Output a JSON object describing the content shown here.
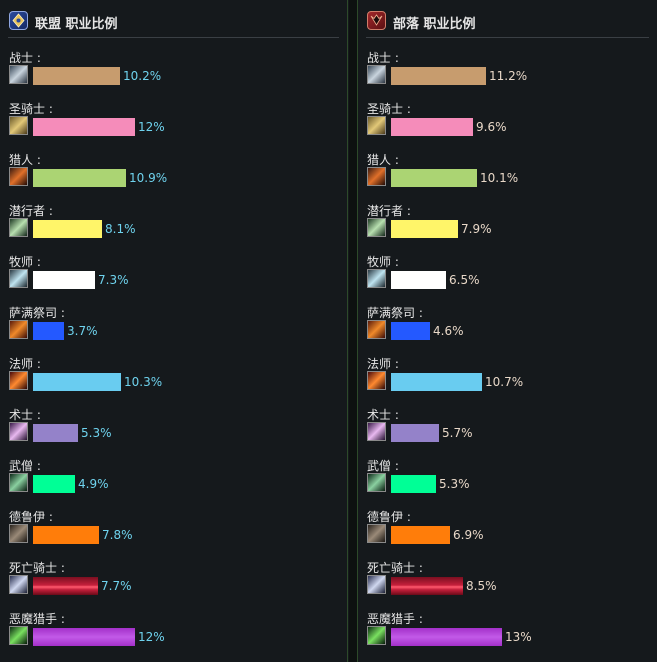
{
  "alliance": {
    "title": "联盟 职业比例",
    "icon": "alliance-crest-icon",
    "classes": [
      {
        "name": "战士 :",
        "percent": "10.2%",
        "value": 10.2,
        "color": "#c79c6e",
        "icon": "warrior-sword-icon"
      },
      {
        "name": "圣骑士 :",
        "percent": "12%",
        "value": 12,
        "color": "#f58cba",
        "icon": "paladin-hammer-icon"
      },
      {
        "name": "猎人 :",
        "percent": "10.9%",
        "value": 10.9,
        "color": "#abd473",
        "icon": "hunter-bow-icon"
      },
      {
        "name": "潜行者 :",
        "percent": "8.1%",
        "value": 8.1,
        "color": "#fff569",
        "icon": "rogue-dagger-icon"
      },
      {
        "name": "牧师 :",
        "percent": "7.3%",
        "value": 7.3,
        "color": "#ffffff",
        "icon": "priest-staff-icon"
      },
      {
        "name": "萨满祭司 :",
        "percent": "3.7%",
        "value": 3.7,
        "color": "#2459ff",
        "icon": "shaman-totem-icon"
      },
      {
        "name": "法师 :",
        "percent": "10.3%",
        "value": 10.3,
        "color": "#69ccf0",
        "icon": "mage-staff-icon"
      },
      {
        "name": "术士 :",
        "percent": "5.3%",
        "value": 5.3,
        "color": "#9482c9",
        "icon": "warlock-wand-icon"
      },
      {
        "name": "武僧 :",
        "percent": "4.9%",
        "value": 4.9,
        "color": "#00ff96",
        "icon": "monk-staff-icon"
      },
      {
        "name": "德鲁伊 :",
        "percent": "7.8%",
        "value": 7.8,
        "color": "#ff7d0a",
        "icon": "druid-claw-icon"
      },
      {
        "name": "死亡骑士 :",
        "percent": "7.7%",
        "value": 7.7,
        "color": "#c41f3b",
        "icon": "deathknight-blade-icon"
      },
      {
        "name": "恶魔猎手 :",
        "percent": "12%",
        "value": 12,
        "color": "#a330c9",
        "icon": "demonhunter-glaive-icon"
      }
    ]
  },
  "horde": {
    "title": "部落 职业比例",
    "icon": "horde-crest-icon",
    "classes": [
      {
        "name": "战士 :",
        "percent": "11.2%",
        "value": 11.2,
        "color": "#c79c6e",
        "icon": "warrior-sword-icon"
      },
      {
        "name": "圣骑士 :",
        "percent": "9.6%",
        "value": 9.6,
        "color": "#f58cba",
        "icon": "paladin-hammer-icon"
      },
      {
        "name": "猎人 :",
        "percent": "10.1%",
        "value": 10.1,
        "color": "#abd473",
        "icon": "hunter-bow-icon"
      },
      {
        "name": "潜行者 :",
        "percent": "7.9%",
        "value": 7.9,
        "color": "#fff569",
        "icon": "rogue-dagger-icon"
      },
      {
        "name": "牧师 :",
        "percent": "6.5%",
        "value": 6.5,
        "color": "#ffffff",
        "icon": "priest-staff-icon"
      },
      {
        "name": "萨满祭司 :",
        "percent": "4.6%",
        "value": 4.6,
        "color": "#2459ff",
        "icon": "shaman-totem-icon"
      },
      {
        "name": "法师 :",
        "percent": "10.7%",
        "value": 10.7,
        "color": "#69ccf0",
        "icon": "mage-staff-icon"
      },
      {
        "name": "术士 :",
        "percent": "5.7%",
        "value": 5.7,
        "color": "#9482c9",
        "icon": "warlock-wand-icon"
      },
      {
        "name": "武僧 :",
        "percent": "5.3%",
        "value": 5.3,
        "color": "#00ff96",
        "icon": "monk-staff-icon"
      },
      {
        "name": "德鲁伊 :",
        "percent": "6.9%",
        "value": 6.9,
        "color": "#ff7d0a",
        "icon": "druid-claw-icon"
      },
      {
        "name": "死亡骑士 :",
        "percent": "8.5%",
        "value": 8.5,
        "color": "#c41f3b",
        "icon": "deathknight-blade-icon"
      },
      {
        "name": "恶魔猎手 :",
        "percent": "13%",
        "value": 13,
        "color": "#a330c9",
        "icon": "demonhunter-glaive-icon"
      }
    ]
  }
}
